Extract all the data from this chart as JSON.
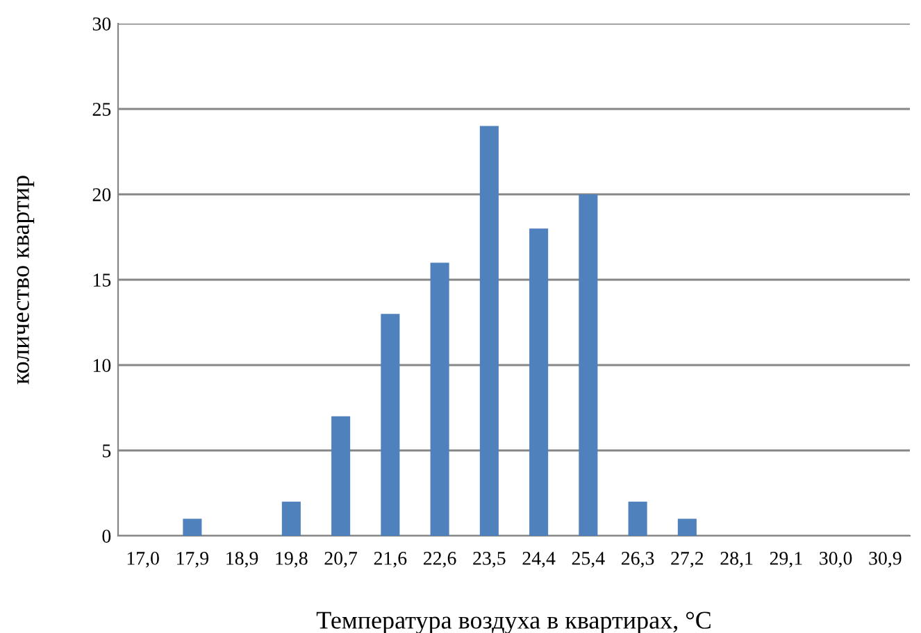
{
  "chart_data": {
    "type": "bar",
    "xlabel": "Температура воздуха в квартирах, °C",
    "ylabel": "количество квартир",
    "categories": [
      "17,0",
      "17,9",
      "18,9",
      "19,8",
      "20,7",
      "21,6",
      "22,6",
      "23,5",
      "24,4",
      "25,4",
      "26,3",
      "27,2",
      "28,1",
      "29,1",
      "30,0",
      "30,9"
    ],
    "values": [
      0,
      1,
      0,
      2,
      7,
      13,
      16,
      24,
      18,
      20,
      2,
      1,
      0,
      0,
      0,
      0
    ],
    "color": "#4f81bd",
    "ylim": [
      0,
      30
    ],
    "yticks": [
      0,
      5,
      10,
      15,
      20,
      25,
      30
    ],
    "grid": "y",
    "legend": false
  }
}
